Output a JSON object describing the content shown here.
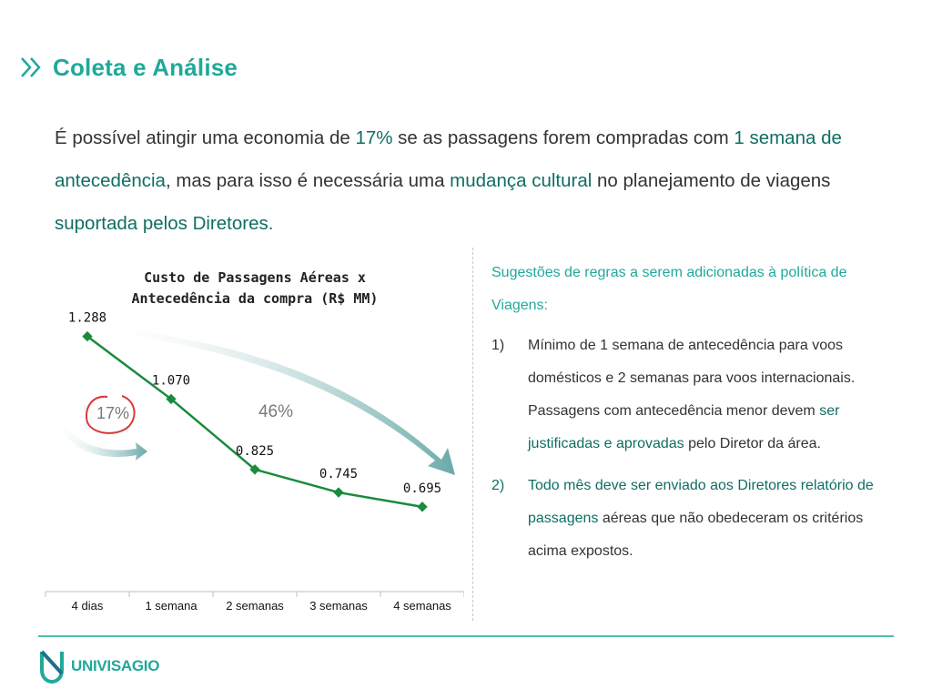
{
  "header": {
    "title": "Coleta e Análise",
    "icon": "double-chevron-icon"
  },
  "lead": {
    "p1": "É possível atingir uma economia de ",
    "h1": "17%",
    "p2": " se as passagens forem compradas com ",
    "h2": "1 semana de antecedência",
    "p3": ", mas para isso é necessária uma ",
    "h3": "mudança cultural",
    "p4": " no planejamento de viagens ",
    "h4": "suportada pelos Diretores."
  },
  "chart_data": {
    "type": "line",
    "title_line1": "Custo de Passagens Aéreas x",
    "title_line2": "Antecedência da compra (R$ MM)",
    "categories": [
      "4 dias",
      "1 semana",
      "2 semanas",
      "3 semanas",
      "4 semanas"
    ],
    "values": [
      1.288,
      1.07,
      0.825,
      0.745,
      0.695
    ],
    "value_labels": [
      "1.288",
      "1.070",
      "0.825",
      "0.745",
      "0.695"
    ],
    "annotations": {
      "small_saving": "17%",
      "big_saving": "46%"
    },
    "ylim": [
      0.4,
      1.35
    ],
    "line_color": "#1a8a3c",
    "legend": "none",
    "grid": false
  },
  "right": {
    "subtitle": "Sugestões de regras a serem adicionadas à política de Viagens:",
    "items": [
      {
        "num": "1)",
        "t1": "Mínimo de 1 semana de antecedência para voos domésticos e 2 semanas para voos internacionais. Passagens com antecedência menor devem ",
        "h1": "ser justificadas e aprovadas",
        "t2": " pelo Diretor da área."
      },
      {
        "num": "2)",
        "h1": "Todo mês deve ser enviado aos Diretores relatório de passagens",
        "t2": " aéreas que não obedeceram os critérios acima expostos."
      }
    ]
  },
  "footer": {
    "logo_text": "UNIVISAGIO",
    "logo_icon": "univisagio-logo-icon"
  },
  "colors": {
    "accent": "#20a99a",
    "dark_accent": "#0f6e63",
    "line": "#1a8a3c",
    "circle": "#d83a3a"
  }
}
